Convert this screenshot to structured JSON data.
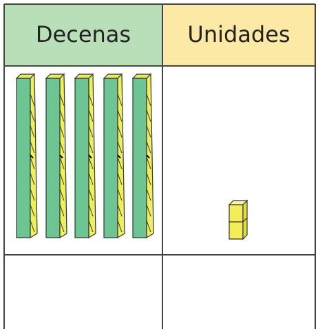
{
  "table": {
    "headers": [
      "Decenas",
      "Unidades"
    ]
  }
}
